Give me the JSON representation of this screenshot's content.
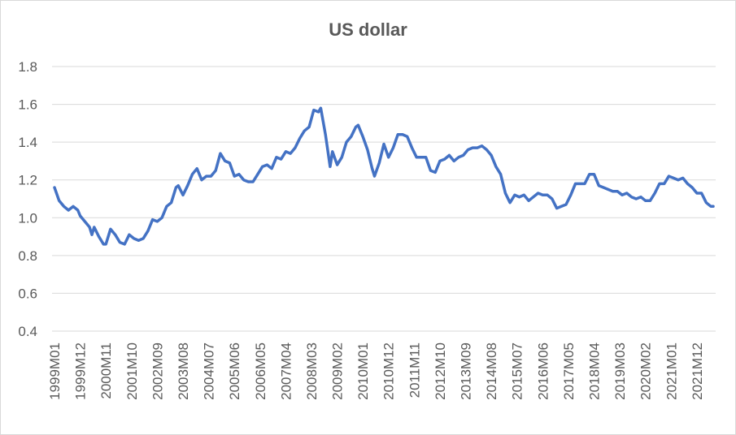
{
  "chart_data": {
    "type": "line",
    "title": "US dollar",
    "xlabel": "",
    "ylabel": "",
    "ylim": [
      0.4,
      1.8
    ],
    "yticks": [
      "0.4",
      "0.6",
      "0.8",
      "1.0",
      "1.2",
      "1.4",
      "1.6",
      "1.8"
    ],
    "xtick_labels": [
      "1999M01",
      "1999M12",
      "2000M11",
      "2001M10",
      "2002M09",
      "2003M08",
      "2004M07",
      "2005M06",
      "2006M05",
      "2007M04",
      "2008M03",
      "2009M02",
      "2010M01",
      "2010M12",
      "2011M11",
      "2012M10",
      "2013M09",
      "2014M08",
      "2015M07",
      "2016M06",
      "2017M05",
      "2018M04",
      "2019M03",
      "2020M02",
      "2021M01",
      "2021M12"
    ],
    "grid": true,
    "legend": "none",
    "colors": {
      "line": "#4472c4",
      "grid": "#d9d9d9",
      "text": "#595959"
    },
    "series": [
      {
        "points": [
          [
            "1999M01",
            1.16
          ],
          [
            "1999M03",
            1.09
          ],
          [
            "1999M05",
            1.06
          ],
          [
            "1999M07",
            1.04
          ],
          [
            "1999M09",
            1.06
          ],
          [
            "1999M11",
            1.04
          ],
          [
            "1999M12",
            1.01
          ],
          [
            "2000M02",
            0.98
          ],
          [
            "2000M04",
            0.95
          ],
          [
            "2000M05",
            0.91
          ],
          [
            "2000M06",
            0.95
          ],
          [
            "2000M08",
            0.9
          ],
          [
            "2000M10",
            0.86
          ],
          [
            "2000M11",
            0.86
          ],
          [
            "2001M01",
            0.94
          ],
          [
            "2001M03",
            0.91
          ],
          [
            "2001M05",
            0.87
          ],
          [
            "2001M07",
            0.86
          ],
          [
            "2001M09",
            0.91
          ],
          [
            "2001M11",
            0.89
          ],
          [
            "2002M01",
            0.88
          ],
          [
            "2002M03",
            0.89
          ],
          [
            "2002M05",
            0.93
          ],
          [
            "2002M07",
            0.99
          ],
          [
            "2002M09",
            0.98
          ],
          [
            "2002M11",
            1.0
          ],
          [
            "2003M01",
            1.06
          ],
          [
            "2003M03",
            1.08
          ],
          [
            "2003M05",
            1.16
          ],
          [
            "2003M06",
            1.17
          ],
          [
            "2003M08",
            1.12
          ],
          [
            "2003M10",
            1.17
          ],
          [
            "2003M12",
            1.23
          ],
          [
            "2004M02",
            1.26
          ],
          [
            "2004M04",
            1.2
          ],
          [
            "2004M06",
            1.22
          ],
          [
            "2004M08",
            1.22
          ],
          [
            "2004M10",
            1.25
          ],
          [
            "2004M12",
            1.34
          ],
          [
            "2005M02",
            1.3
          ],
          [
            "2005M04",
            1.29
          ],
          [
            "2005M06",
            1.22
          ],
          [
            "2005M08",
            1.23
          ],
          [
            "2005M10",
            1.2
          ],
          [
            "2005M12",
            1.19
          ],
          [
            "2006M02",
            1.19
          ],
          [
            "2006M04",
            1.23
          ],
          [
            "2006M06",
            1.27
          ],
          [
            "2006M08",
            1.28
          ],
          [
            "2006M10",
            1.26
          ],
          [
            "2006M12",
            1.32
          ],
          [
            "2007M02",
            1.31
          ],
          [
            "2007M04",
            1.35
          ],
          [
            "2007M06",
            1.34
          ],
          [
            "2007M08",
            1.37
          ],
          [
            "2007M10",
            1.42
          ],
          [
            "2007M12",
            1.46
          ],
          [
            "2008M02",
            1.48
          ],
          [
            "2008M04",
            1.57
          ],
          [
            "2008M06",
            1.56
          ],
          [
            "2008M07",
            1.58
          ],
          [
            "2008M09",
            1.44
          ],
          [
            "2008M11",
            1.27
          ],
          [
            "2008M12",
            1.35
          ],
          [
            "2009M02",
            1.28
          ],
          [
            "2009M04",
            1.32
          ],
          [
            "2009M06",
            1.4
          ],
          [
            "2009M08",
            1.43
          ],
          [
            "2009M10",
            1.48
          ],
          [
            "2009M11",
            1.49
          ],
          [
            "2010M01",
            1.43
          ],
          [
            "2010M03",
            1.36
          ],
          [
            "2010M05",
            1.26
          ],
          [
            "2010M06",
            1.22
          ],
          [
            "2010M08",
            1.29
          ],
          [
            "2010M10",
            1.39
          ],
          [
            "2010M12",
            1.32
          ],
          [
            "2011M02",
            1.37
          ],
          [
            "2011M04",
            1.44
          ],
          [
            "2011M06",
            1.44
          ],
          [
            "2011M08",
            1.43
          ],
          [
            "2011M10",
            1.37
          ],
          [
            "2011M12",
            1.32
          ],
          [
            "2012M02",
            1.32
          ],
          [
            "2012M04",
            1.32
          ],
          [
            "2012M06",
            1.25
          ],
          [
            "2012M08",
            1.24
          ],
          [
            "2012M10",
            1.3
          ],
          [
            "2012M12",
            1.31
          ],
          [
            "2013M02",
            1.33
          ],
          [
            "2013M04",
            1.3
          ],
          [
            "2013M06",
            1.32
          ],
          [
            "2013M08",
            1.33
          ],
          [
            "2013M10",
            1.36
          ],
          [
            "2013M12",
            1.37
          ],
          [
            "2014M02",
            1.37
          ],
          [
            "2014M04",
            1.38
          ],
          [
            "2014M06",
            1.36
          ],
          [
            "2014M08",
            1.33
          ],
          [
            "2014M10",
            1.27
          ],
          [
            "2014M12",
            1.23
          ],
          [
            "2015M02",
            1.13
          ],
          [
            "2015M04",
            1.08
          ],
          [
            "2015M06",
            1.12
          ],
          [
            "2015M08",
            1.11
          ],
          [
            "2015M10",
            1.12
          ],
          [
            "2015M12",
            1.09
          ],
          [
            "2016M02",
            1.11
          ],
          [
            "2016M04",
            1.13
          ],
          [
            "2016M06",
            1.12
          ],
          [
            "2016M08",
            1.12
          ],
          [
            "2016M10",
            1.1
          ],
          [
            "2016M12",
            1.05
          ],
          [
            "2017M02",
            1.06
          ],
          [
            "2017M04",
            1.07
          ],
          [
            "2017M06",
            1.12
          ],
          [
            "2017M08",
            1.18
          ],
          [
            "2017M10",
            1.18
          ],
          [
            "2017M12",
            1.18
          ],
          [
            "2018M02",
            1.23
          ],
          [
            "2018M04",
            1.23
          ],
          [
            "2018M06",
            1.17
          ],
          [
            "2018M08",
            1.16
          ],
          [
            "2018M10",
            1.15
          ],
          [
            "2018M12",
            1.14
          ],
          [
            "2019M02",
            1.14
          ],
          [
            "2019M04",
            1.12
          ],
          [
            "2019M06",
            1.13
          ],
          [
            "2019M08",
            1.11
          ],
          [
            "2019M10",
            1.1
          ],
          [
            "2019M12",
            1.11
          ],
          [
            "2020M02",
            1.09
          ],
          [
            "2020M04",
            1.09
          ],
          [
            "2020M06",
            1.13
          ],
          [
            "2020M08",
            1.18
          ],
          [
            "2020M10",
            1.18
          ],
          [
            "2020M12",
            1.22
          ],
          [
            "2021M02",
            1.21
          ],
          [
            "2021M04",
            1.2
          ],
          [
            "2021M06",
            1.21
          ],
          [
            "2021M08",
            1.18
          ],
          [
            "2021M10",
            1.16
          ],
          [
            "2021M12",
            1.13
          ],
          [
            "2022M02",
            1.13
          ],
          [
            "2022M04",
            1.08
          ],
          [
            "2022M06",
            1.06
          ],
          [
            "2022M07",
            1.06
          ]
        ]
      }
    ]
  }
}
